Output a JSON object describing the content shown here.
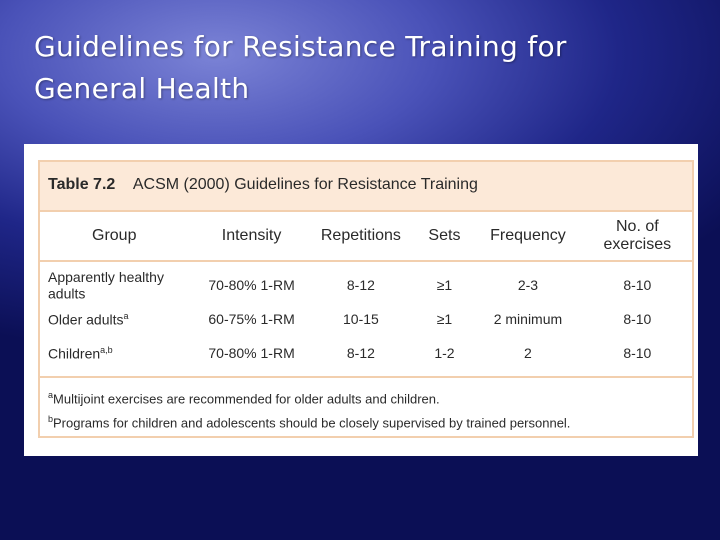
{
  "slide": {
    "title_line1": "Guidelines for Resistance Training for",
    "title_line2": "General Health"
  },
  "table": {
    "number": "Table 7.2",
    "caption": "ACSM (2000) Guidelines for Resistance Training",
    "headers": [
      "Group",
      "Intensity",
      "Repetitions",
      "Sets",
      "Frequency",
      "No. of exercises"
    ],
    "rows": [
      {
        "group": "Apparently healthy adults",
        "sup": "",
        "intensity": "70-80% 1-RM",
        "repetitions": "8-12",
        "sets": "≥1",
        "frequency": "2-3",
        "exercises": "8-10"
      },
      {
        "group": "Older adults",
        "sup": "a",
        "intensity": "60-75% 1-RM",
        "repetitions": "10-15",
        "sets": "≥1",
        "frequency": "2 minimum",
        "exercises": "8-10"
      },
      {
        "group": "Children",
        "sup": "a,b",
        "intensity": "70-80% 1-RM",
        "repetitions": "8-12",
        "sets": "1-2",
        "frequency": "2",
        "exercises": "8-10"
      }
    ],
    "footnotes": [
      {
        "mark": "a",
        "text": "Multijoint exercises are recommended for older adults and children."
      },
      {
        "mark": "b",
        "text": "Programs for children and adolescents should be closely supervised by trained personnel."
      }
    ]
  }
}
